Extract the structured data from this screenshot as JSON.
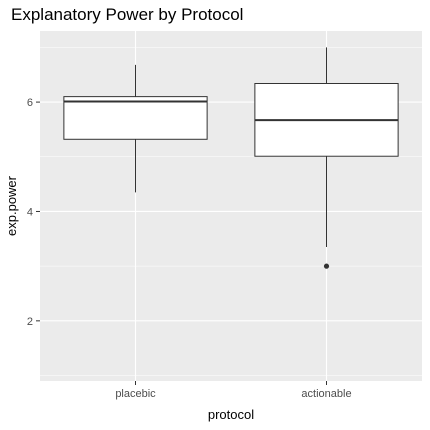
{
  "chart_data": {
    "type": "boxplot",
    "title": "Explanatory Power by Protocol",
    "xlabel": "protocol",
    "ylabel": "exp.power",
    "categories": [
      "placebic",
      "actionable"
    ],
    "boxes": [
      {
        "category": "placebic",
        "whisker_low": 4.35,
        "q1": 5.32,
        "median": 6.01,
        "q3": 6.1,
        "whisker_high": 6.68,
        "outliers": []
      },
      {
        "category": "actionable",
        "whisker_low": 3.35,
        "q1": 5.01,
        "median": 5.67,
        "q3": 6.34,
        "whisker_high": 7.0,
        "outliers": [
          3.0
        ]
      }
    ],
    "ylim": [
      0.9,
      7.3
    ],
    "yticks": [
      2,
      4,
      6
    ],
    "ytick_labels": [
      "2",
      "4",
      "6"
    ],
    "grid": true,
    "colors": {
      "panel": "#ebebeb",
      "grid": "#ffffff",
      "box_fill": "#ffffff",
      "box_line": "#333333"
    }
  }
}
